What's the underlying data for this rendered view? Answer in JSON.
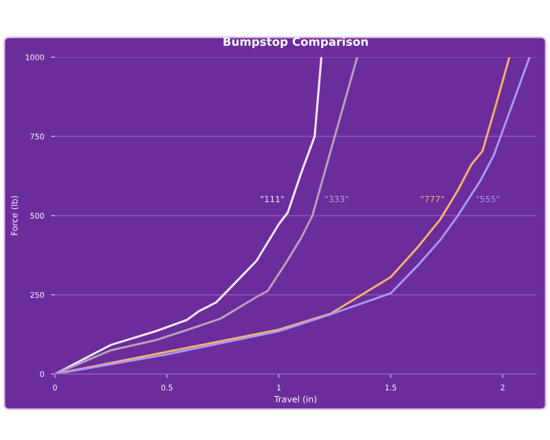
{
  "chart_data": {
    "type": "line",
    "title": "Bumpstop Comparison",
    "xlabel": "Travel (in)",
    "ylabel": "Force (lb)",
    "xlim": [
      0,
      2.15
    ],
    "xticks": [
      0,
      0.5,
      1,
      1.5,
      2
    ],
    "ylim": [
      0,
      1000
    ],
    "yticks": [
      0,
      250,
      500,
      750,
      1000
    ],
    "grid": "y",
    "legend": false,
    "marker": "none",
    "line_style": "solid",
    "series": [
      {
        "name": "\"111\"",
        "color": "#f6e9f8",
        "x": [
          0,
          0.25,
          0.45,
          0.59,
          0.64,
          0.72,
          0.8,
          0.9,
          1.0,
          1.04,
          1.1,
          1.16,
          1.19
        ],
        "values": [
          0,
          92,
          135,
          171,
          197,
          226,
          284,
          357,
          473,
          510,
          635,
          750,
          1000
        ]
      },
      {
        "name": "\"333\"",
        "color": "#b8a3bd",
        "x": [
          0,
          0.25,
          0.45,
          0.59,
          0.74,
          0.9,
          0.95,
          1.03,
          1.1,
          1.15,
          1.25,
          1.35
        ],
        "values": [
          0,
          75,
          107,
          139,
          175,
          243,
          262,
          349,
          430,
          500,
          750,
          1000
        ]
      },
      {
        "name": "\"777\"",
        "color": "#f5b36b",
        "x": [
          0,
          0.5,
          1.0,
          1.23,
          1.5,
          1.62,
          1.72,
          1.8,
          1.86,
          1.91,
          1.97,
          2.03
        ],
        "values": [
          0,
          70,
          140,
          190,
          306,
          400,
          487,
          580,
          661,
          704,
          850,
          1000
        ]
      },
      {
        "name": "\"555\"",
        "color": "#a99af0",
        "x": [
          0,
          0.5,
          1.0,
          1.23,
          1.5,
          1.62,
          1.72,
          1.8,
          1.9,
          1.96,
          2.05,
          2.12
        ],
        "values": [
          0,
          62,
          135,
          188,
          255,
          342,
          422,
          500,
          610,
          690,
          864,
          1000
        ]
      }
    ]
  }
}
